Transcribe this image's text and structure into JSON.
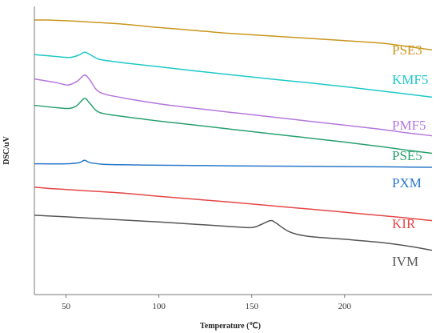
{
  "chart_data": {
    "type": "line",
    "title": "",
    "xlabel": "Temperature (℃)",
    "ylabel": "DSC/uV",
    "xlim": [
      33,
      247
    ],
    "xticks": [
      50,
      100,
      150,
      200
    ],
    "tick_labels": [
      "50",
      "100",
      "150",
      "200"
    ],
    "grid": false,
    "y_ticks_shown": false,
    "series": [
      {
        "name": "PSE3",
        "color": "#c8961e",
        "x": [
          33,
          40,
          50,
          60,
          80,
          100,
          120,
          140,
          160,
          180,
          200,
          220,
          230,
          240,
          247
        ],
        "y": [
          11.3,
          11.3,
          11.27,
          11.23,
          11.13,
          10.98,
          10.85,
          10.72,
          10.62,
          10.52,
          10.42,
          10.31,
          10.21,
          10.1,
          10.02
        ]
      },
      {
        "name": "KMF5",
        "color": "#1ec8c8",
        "x": [
          33,
          45,
          52,
          57,
          60,
          63,
          68,
          80,
          100,
          120,
          140,
          160,
          180,
          200,
          220,
          235,
          247
        ],
        "y": [
          9.82,
          9.74,
          9.7,
          9.8,
          9.92,
          9.82,
          9.62,
          9.48,
          9.3,
          9.12,
          8.95,
          8.78,
          8.62,
          8.45,
          8.26,
          8.12,
          8.0
        ]
      },
      {
        "name": "PMF5",
        "color": "#b478dc",
        "x": [
          33,
          45,
          51,
          56,
          60,
          63,
          68,
          80,
          100,
          120,
          140,
          160,
          180,
          200,
          220,
          235,
          247
        ],
        "y": [
          8.78,
          8.62,
          8.52,
          8.68,
          8.95,
          8.72,
          8.22,
          7.98,
          7.72,
          7.52,
          7.34,
          7.16,
          6.98,
          6.8,
          6.62,
          6.46,
          6.35
        ]
      },
      {
        "name": "PSE5",
        "color": "#28a06e",
        "x": [
          33,
          45,
          52,
          56,
          60,
          63,
          68,
          80,
          100,
          120,
          140,
          160,
          180,
          200,
          220,
          235,
          247
        ],
        "y": [
          7.65,
          7.55,
          7.52,
          7.65,
          7.95,
          7.72,
          7.35,
          7.18,
          6.98,
          6.8,
          6.62,
          6.44,
          6.26,
          6.08,
          5.88,
          5.72,
          5.6
        ]
      },
      {
        "name": "PXM",
        "color": "#2878c8",
        "x": [
          33,
          50,
          57,
          60,
          63,
          70,
          80,
          100,
          120,
          140,
          160,
          180,
          200,
          220,
          247
        ],
        "y": [
          5.15,
          5.15,
          5.2,
          5.3,
          5.2,
          5.13,
          5.11,
          5.09,
          5.08,
          5.06,
          5.05,
          5.04,
          5.03,
          5.02,
          5.0
        ]
      },
      {
        "name": "KIR",
        "color": "#e64646",
        "x": [
          33,
          40,
          50,
          60,
          80,
          100,
          120,
          140,
          160,
          180,
          200,
          220,
          235,
          247
        ],
        "y": [
          4.15,
          4.1,
          4.05,
          4.0,
          3.9,
          3.76,
          3.63,
          3.5,
          3.36,
          3.22,
          3.08,
          2.93,
          2.82,
          2.72
        ]
      },
      {
        "name": "IVM",
        "color": "#555555",
        "x": [
          33,
          50,
          80,
          100,
          120,
          140,
          150,
          155,
          160,
          163,
          170,
          180,
          200,
          220,
          235,
          247
        ],
        "y": [
          2.95,
          2.88,
          2.75,
          2.66,
          2.56,
          2.46,
          2.42,
          2.55,
          2.72,
          2.62,
          2.25,
          2.05,
          1.92,
          1.78,
          1.62,
          1.45
        ]
      }
    ]
  }
}
